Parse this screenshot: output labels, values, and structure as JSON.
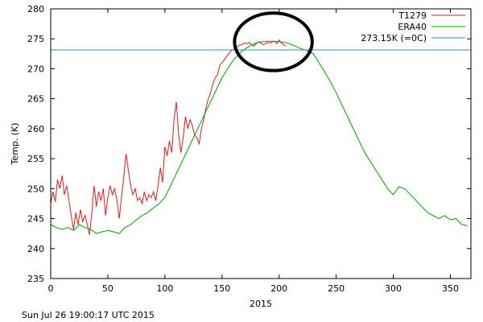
{
  "chart_data": {
    "type": "line",
    "xlabel": "2015",
    "ylabel": "Temp. (K)",
    "xlim": [
      0,
      368
    ],
    "ylim": [
      235,
      280
    ],
    "xticks": [
      0,
      50,
      100,
      150,
      200,
      250,
      300,
      350
    ],
    "yticks": [
      235,
      240,
      245,
      250,
      255,
      260,
      265,
      270,
      275,
      280
    ],
    "grid": false,
    "legend_position": "top-right",
    "series": [
      {
        "name": "T1279",
        "color": "#e41a1c",
        "x": [
          0,
          2,
          4,
          6,
          8,
          10,
          12,
          14,
          16,
          18,
          20,
          22,
          24,
          26,
          28,
          30,
          32,
          34,
          36,
          38,
          40,
          42,
          44,
          46,
          48,
          50,
          52,
          54,
          56,
          58,
          60,
          62,
          64,
          66,
          68,
          70,
          72,
          74,
          76,
          78,
          80,
          82,
          84,
          86,
          88,
          90,
          92,
          94,
          96,
          98,
          100,
          102,
          104,
          106,
          108,
          110,
          112,
          114,
          116,
          118,
          120,
          122,
          124,
          126,
          128,
          130,
          132,
          134,
          136,
          138,
          140,
          142,
          144,
          146,
          148,
          150,
          152,
          154,
          156,
          158,
          160,
          162,
          164,
          166,
          168,
          170,
          172,
          174,
          176,
          178,
          180,
          182,
          184,
          186,
          188,
          190,
          192,
          194,
          196,
          198,
          200,
          202,
          204,
          206
        ],
        "y": [
          247.5,
          249.5,
          247.8,
          251.5,
          250.0,
          252.2,
          249.0,
          250.5,
          248.0,
          245.5,
          243.2,
          246.0,
          244.0,
          246.5,
          244.5,
          245.5,
          244.0,
          242.3,
          246.0,
          250.5,
          247.0,
          249.5,
          248.0,
          250.0,
          245.5,
          248.5,
          250.5,
          249.0,
          250.0,
          248.0,
          245.0,
          248.5,
          252.0,
          255.8,
          253.0,
          250.5,
          249.0,
          250.0,
          248.0,
          248.5,
          247.5,
          249.5,
          248.0,
          249.0,
          248.5,
          249.5,
          248.0,
          250.5,
          253.5,
          251.0,
          257.0,
          255.5,
          258.0,
          256.0,
          261.5,
          264.5,
          259.0,
          256.0,
          258.5,
          262.0,
          260.0,
          261.5,
          260.5,
          259.0,
          258.5,
          257.5,
          260.0,
          261.5,
          263.5,
          265.0,
          266.0,
          267.5,
          268.5,
          269.0,
          270.5,
          271.0,
          271.5,
          272.0,
          272.5,
          273.0,
          273.2,
          273.5,
          273.8,
          274.0,
          274.1,
          274.3,
          274.2,
          274.4,
          274.0,
          273.8,
          274.2,
          274.5,
          274.3,
          274.0,
          274.2,
          274.4,
          274.3,
          274.5,
          274.6,
          274.2,
          274.8,
          274.3,
          274.0,
          273.8
        ]
      },
      {
        "name": "ERA40",
        "color": "#00a000",
        "x": [
          0,
          5,
          10,
          15,
          20,
          25,
          30,
          35,
          40,
          45,
          50,
          55,
          60,
          65,
          70,
          75,
          80,
          85,
          90,
          95,
          100,
          105,
          110,
          115,
          120,
          125,
          130,
          135,
          140,
          145,
          150,
          155,
          160,
          165,
          170,
          175,
          180,
          185,
          190,
          195,
          200,
          205,
          210,
          215,
          220,
          225,
          230,
          235,
          240,
          245,
          250,
          255,
          260,
          265,
          270,
          275,
          280,
          285,
          290,
          295,
          300,
          305,
          310,
          315,
          320,
          325,
          330,
          335,
          340,
          345,
          350,
          355,
          360,
          365
        ],
        "y": [
          244.0,
          243.5,
          243.2,
          243.5,
          243.0,
          244.0,
          243.5,
          243.2,
          242.5,
          242.8,
          243.0,
          242.8,
          242.5,
          243.5,
          244.0,
          244.8,
          245.5,
          246.0,
          246.8,
          247.5,
          248.5,
          250.5,
          252.5,
          254.5,
          256.5,
          258.5,
          260.5,
          262.5,
          264.5,
          266.5,
          268.5,
          270.0,
          271.5,
          272.5,
          273.3,
          273.9,
          274.3,
          274.5,
          274.6,
          274.6,
          274.5,
          274.4,
          274.1,
          273.7,
          273.3,
          273.0,
          272.5,
          271.0,
          269.5,
          267.8,
          266.0,
          264.0,
          262.0,
          260.0,
          258.0,
          256.0,
          254.5,
          253.0,
          251.5,
          250.0,
          249.0,
          250.3,
          250.0,
          249.0,
          248.0,
          247.0,
          246.0,
          245.5,
          245.0,
          245.5,
          244.8,
          245.0,
          244.0,
          243.8
        ]
      },
      {
        "name": "273.15K (=0C)",
        "color": "#2b8cc4",
        "x": [
          0,
          368
        ],
        "y": [
          273.15,
          273.15
        ]
      }
    ],
    "annotations": [
      {
        "type": "ellipse",
        "center": [
          195,
          274.5
        ],
        "rx_days": 34,
        "ry_k": 4.8,
        "color": "#000000"
      }
    ]
  },
  "footer": {
    "timestamp": "Sun Jul 26 19:00:17 UTC 2015"
  }
}
